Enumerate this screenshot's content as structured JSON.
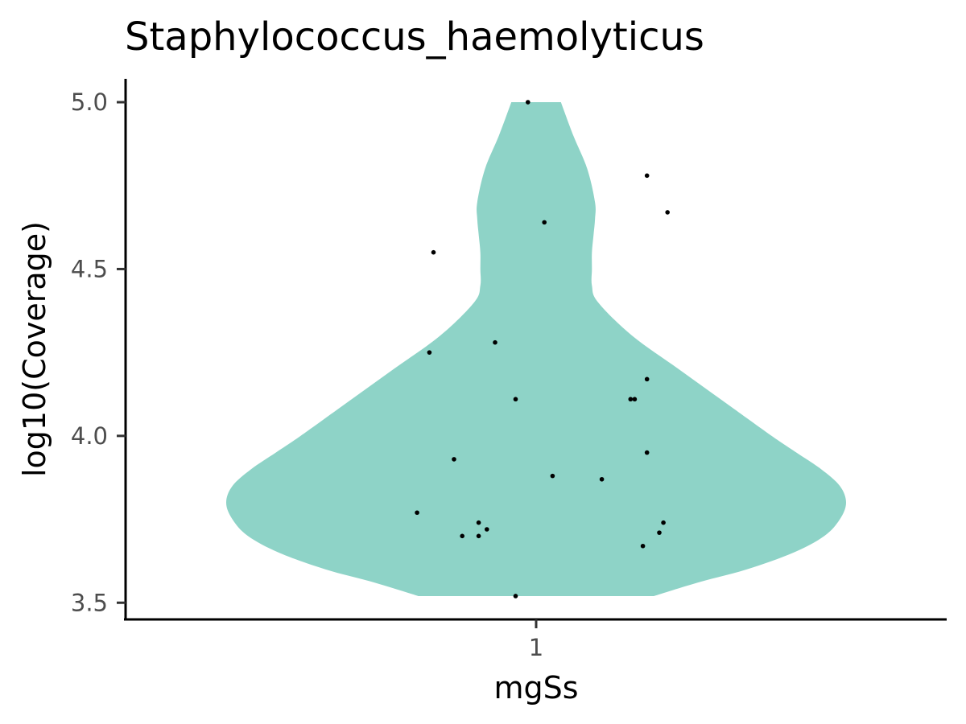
{
  "chart_data": {
    "type": "violin",
    "title": "Staphylococcus_haemolyticus",
    "xlabel": "mgSs",
    "ylabel": "log10(Coverage)",
    "categories": [
      "1"
    ],
    "ylim": [
      3.45,
      5.07
    ],
    "yticks": [
      3.5,
      4.0,
      4.5,
      5.0
    ],
    "ytick_labels": [
      "3.5",
      "4.0",
      "4.5",
      "5.0"
    ],
    "xtick_labels": [
      "1"
    ],
    "grid": false,
    "legend": "none",
    "fill_color": "#8ED3C7",
    "point_color": "#000000",
    "violin_density": {
      "y": [
        3.52,
        3.56,
        3.6,
        3.65,
        3.7,
        3.75,
        3.8,
        3.85,
        3.9,
        3.95,
        4.0,
        4.1,
        4.2,
        4.3,
        4.4,
        4.45,
        4.5,
        4.55,
        4.6,
        4.65,
        4.7,
        4.8,
        4.9,
        5.0
      ],
      "relative_width": [
        0.38,
        0.52,
        0.68,
        0.83,
        0.93,
        0.98,
        1.0,
        0.98,
        0.92,
        0.84,
        0.76,
        0.61,
        0.46,
        0.31,
        0.2,
        0.18,
        0.18,
        0.18,
        0.185,
        0.19,
        0.19,
        0.165,
        0.12,
        0.08
      ]
    },
    "points": [
      {
        "x_offset": -0.02,
        "y": 5.0
      },
      {
        "x_offset": 0.27,
        "y": 4.78
      },
      {
        "x_offset": 0.32,
        "y": 4.67
      },
      {
        "x_offset": 0.02,
        "y": 4.64
      },
      {
        "x_offset": -0.25,
        "y": 4.55
      },
      {
        "x_offset": -0.1,
        "y": 4.28
      },
      {
        "x_offset": -0.26,
        "y": 4.25
      },
      {
        "x_offset": 0.27,
        "y": 4.17
      },
      {
        "x_offset": -0.05,
        "y": 4.11
      },
      {
        "x_offset": 0.23,
        "y": 4.11
      },
      {
        "x_offset": 0.24,
        "y": 4.11
      },
      {
        "x_offset": 0.27,
        "y": 3.95
      },
      {
        "x_offset": -0.2,
        "y": 3.93
      },
      {
        "x_offset": 0.04,
        "y": 3.88
      },
      {
        "x_offset": 0.16,
        "y": 3.87
      },
      {
        "x_offset": -0.29,
        "y": 3.77
      },
      {
        "x_offset": 0.31,
        "y": 3.74
      },
      {
        "x_offset": -0.14,
        "y": 3.74
      },
      {
        "x_offset": -0.12,
        "y": 3.72
      },
      {
        "x_offset": 0.3,
        "y": 3.71
      },
      {
        "x_offset": -0.18,
        "y": 3.7
      },
      {
        "x_offset": -0.14,
        "y": 3.7
      },
      {
        "x_offset": 0.26,
        "y": 3.67
      },
      {
        "x_offset": -0.05,
        "y": 3.52
      }
    ]
  }
}
